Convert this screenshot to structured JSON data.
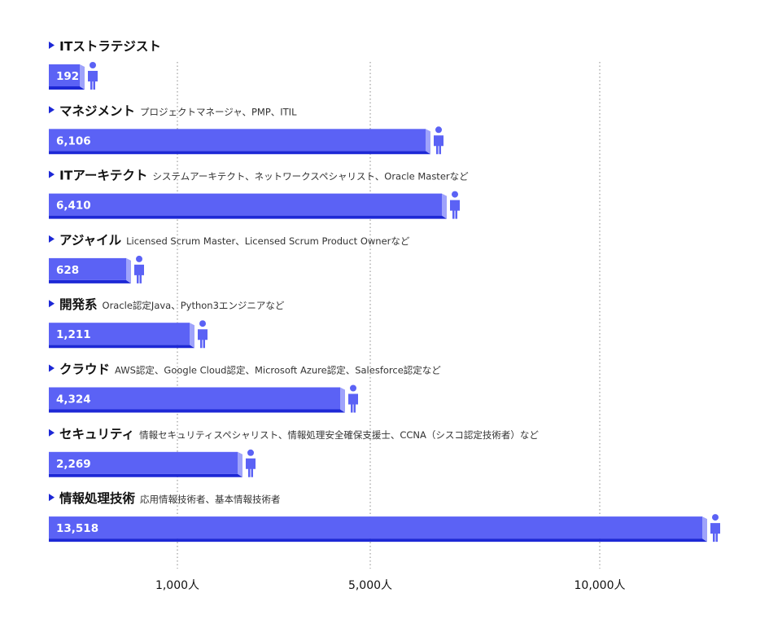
{
  "chart_data": {
    "type": "bar",
    "orientation": "horizontal",
    "scale": "log",
    "unit": "人",
    "grid": "vertical dotted lines at 1,000 / 5,000 / 10,000",
    "categories": [
      {
        "name": "ITストラテジスト",
        "note": ""
      },
      {
        "name": "マネジメント",
        "note": "プロジェクトマネージャ、PMP、ITIL"
      },
      {
        "name": "ITアーキテクト",
        "note": "システムアーキテクト、ネットワークスペシャリスト、Oracle Masterなど"
      },
      {
        "name": "アジャイル",
        "note": "Licensed Scrum Master、Licensed Scrum Product Ownerなど"
      },
      {
        "name": "開発系",
        "note": "Oracle認定Java、Python3エンジニアなど"
      },
      {
        "name": "クラウド",
        "note": "AWS認定、Google Cloud認定、Microsoft Azure認定、Salesforce認定など"
      },
      {
        "name": "セキュリティ",
        "note": "情報セキュリティスペシャリスト、情報処理安全確保支援士、CCNA（シスコ認定技術者）など"
      },
      {
        "name": "情報処理技術",
        "note": "応用情報技術者、基本情報技術者"
      }
    ],
    "values": [
      192,
      6106,
      6410,
      628,
      1211,
      4324,
      2269,
      13518
    ],
    "value_labels": [
      "192",
      "6,106",
      "6,410",
      "628",
      "1,211",
      "4,324",
      "2,269",
      "13,518"
    ],
    "ticks": [
      {
        "value": 1000,
        "label": "1,000人"
      },
      {
        "value": 5000,
        "label": "5,000人"
      },
      {
        "value": 10000,
        "label": "10,000人"
      }
    ],
    "colors": {
      "bar_front": "#5b62f5",
      "bar_side": "#9fa3fb",
      "bar_bottom": "#1d28d6",
      "pointer": "#1d28d6",
      "person_icon": "#5b62f5",
      "grid": "#8a8a8a",
      "text": "#111111",
      "note_text": "#333333",
      "value_text": "#ffffff"
    }
  }
}
